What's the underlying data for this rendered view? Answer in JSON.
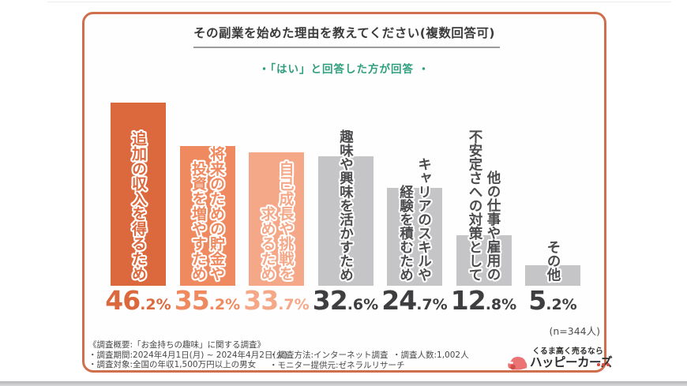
{
  "colors": {
    "card_border": "#cf6f4d",
    "subtitle_green": "#2e9e7d",
    "bar_orange_dark": "#db693d",
    "bar_orange_mid": "#ef8a60",
    "bar_orange_light": "#f5a888",
    "bar_gray": "#c5c5c7",
    "gray_label_text": "#4c4c4e",
    "gray_value_text": "#3e3e40",
    "logo_pink": "#ec7373",
    "logo_dot_red": "#cf4f45"
  },
  "chart_data": {
    "type": "bar",
    "title": "その副業を始めた理由を教えてください(複数回答可)",
    "subtitle": "・「はい」と回答した方が回答 ・",
    "sample_size_note": "(n=344人)",
    "unit": "%",
    "ylim": [
      0,
      50
    ],
    "grid": false,
    "legend": false,
    "categories": [
      "追加の収入を得るため",
      "将来のための貯金や投資を増やすため",
      "自己成長や挑戦を求めるため",
      "趣味や興味を活かすため",
      "キャリアのスキルや経験を積むため",
      "他の仕事や雇用の不安定さへの対策として",
      "その他"
    ],
    "values": [
      46.2,
      35.2,
      33.7,
      32.6,
      24.7,
      12.8,
      5.2
    ],
    "bars": [
      {
        "category": "追加の収入を得るため",
        "label_columns": [
          "追加の収入を得るため"
        ],
        "value": 46.2,
        "value_text": "46.2%",
        "bar_color": "#db693d",
        "label_color": "#db693d",
        "value_color": "#db693d"
      },
      {
        "category": "将来のための貯金や投資を増やすため",
        "label_columns": [
          "将来のための貯金や",
          "投資を増やすため"
        ],
        "value": 35.2,
        "value_text": "35.2%",
        "bar_color": "#ef8a60",
        "label_color": "#ef8a60",
        "value_color": "#ef8a60"
      },
      {
        "category": "自己成長や挑戦を求めるため",
        "label_columns": [
          "自己成長や挑戦を",
          "求めるため"
        ],
        "value": 33.7,
        "value_text": "33.7%",
        "bar_color": "#f5a888",
        "label_color": "#f5a888",
        "value_color": "#f5a888"
      },
      {
        "category": "趣味や興味を活かすため",
        "label_columns": [
          "趣味や興味を活かすため"
        ],
        "value": 32.6,
        "value_text": "32.6%",
        "bar_color": "#c5c5c7",
        "label_color": "#4c4c4e",
        "value_color": "#3e3e40"
      },
      {
        "category": "キャリアのスキルや経験を積むため",
        "label_columns": [
          "キャリアのスキルや",
          "経験を積むため"
        ],
        "value": 24.7,
        "value_text": "24.7%",
        "bar_color": "#c5c5c7",
        "label_color": "#4c4c4e",
        "value_color": "#3e3e40"
      },
      {
        "category": "他の仕事や雇用の不安定さへの対策として",
        "label_columns": [
          "他の仕事や雇用の",
          "不安定さへの対策として"
        ],
        "value": 12.8,
        "value_text": "12.8%",
        "bar_color": "#c5c5c7",
        "label_color": "#4c4c4e",
        "value_color": "#3e3e40"
      },
      {
        "category": "その他",
        "label_columns": [
          "その他"
        ],
        "value": 5.2,
        "value_text": "5.2%",
        "bar_color": "#c5c5c7",
        "label_color": "#4c4c4e",
        "value_color": "#3e3e40"
      }
    ]
  },
  "survey_overview": {
    "heading": "《調査概要:「お金持ちの趣味」に関する調査》",
    "column1": [
      "・調査期間:2024年4月1日(月) ~ 2024年4月2日(火)",
      "・調査対象:全国の年収1,500万円以上の男女"
    ],
    "column2": [
      "・調査方法:インターネット調査",
      "・モニター提供元:ゼネラルリサーチ"
    ],
    "column3": [
      "・調査人数:1,002人"
    ]
  },
  "logo": {
    "tagline": "くるま高く売るなら",
    "brand": "ハッピーカーズ"
  }
}
